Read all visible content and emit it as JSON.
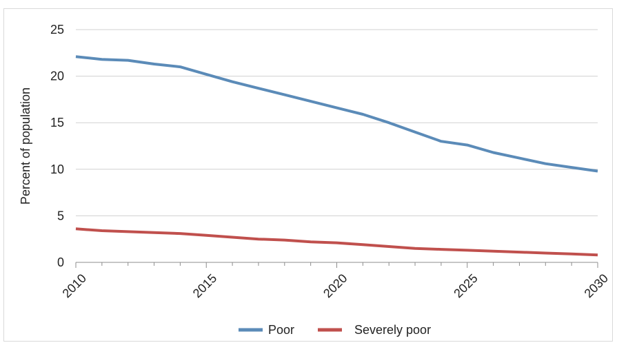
{
  "chart_data": {
    "type": "line",
    "title": "",
    "xlabel": "",
    "ylabel": "Percent of population",
    "xlim": [
      2010,
      2030
    ],
    "ylim": [
      0,
      25
    ],
    "y_ticks": [
      0,
      5,
      10,
      15,
      20,
      25
    ],
    "x_tick_labels": [
      "2010",
      "2015",
      "2020",
      "2025",
      "2030"
    ],
    "grid": "horizontal",
    "legend_position": "bottom",
    "series": [
      {
        "name": "Poor",
        "color": "#5b8bb8",
        "x": [
          2010,
          2011,
          2012,
          2013,
          2014,
          2015,
          2016,
          2017,
          2018,
          2019,
          2020,
          2021,
          2022,
          2023,
          2024,
          2025,
          2026,
          2027,
          2028,
          2029,
          2030
        ],
        "values": [
          22.1,
          21.8,
          21.7,
          21.3,
          21.0,
          20.2,
          19.4,
          18.7,
          18.0,
          17.3,
          16.6,
          15.9,
          15.0,
          14.0,
          13.0,
          12.6,
          11.8,
          11.2,
          10.6,
          10.2,
          9.8
        ]
      },
      {
        "name": "Severely poor",
        "color": "#c0504d",
        "x": [
          2010,
          2011,
          2012,
          2013,
          2014,
          2015,
          2016,
          2017,
          2018,
          2019,
          2020,
          2021,
          2022,
          2023,
          2024,
          2025,
          2026,
          2027,
          2028,
          2029,
          2030
        ],
        "values": [
          3.6,
          3.4,
          3.3,
          3.2,
          3.1,
          2.9,
          2.7,
          2.5,
          2.4,
          2.2,
          2.1,
          1.9,
          1.7,
          1.5,
          1.4,
          1.3,
          1.2,
          1.1,
          1.0,
          0.9,
          0.8
        ]
      }
    ]
  }
}
